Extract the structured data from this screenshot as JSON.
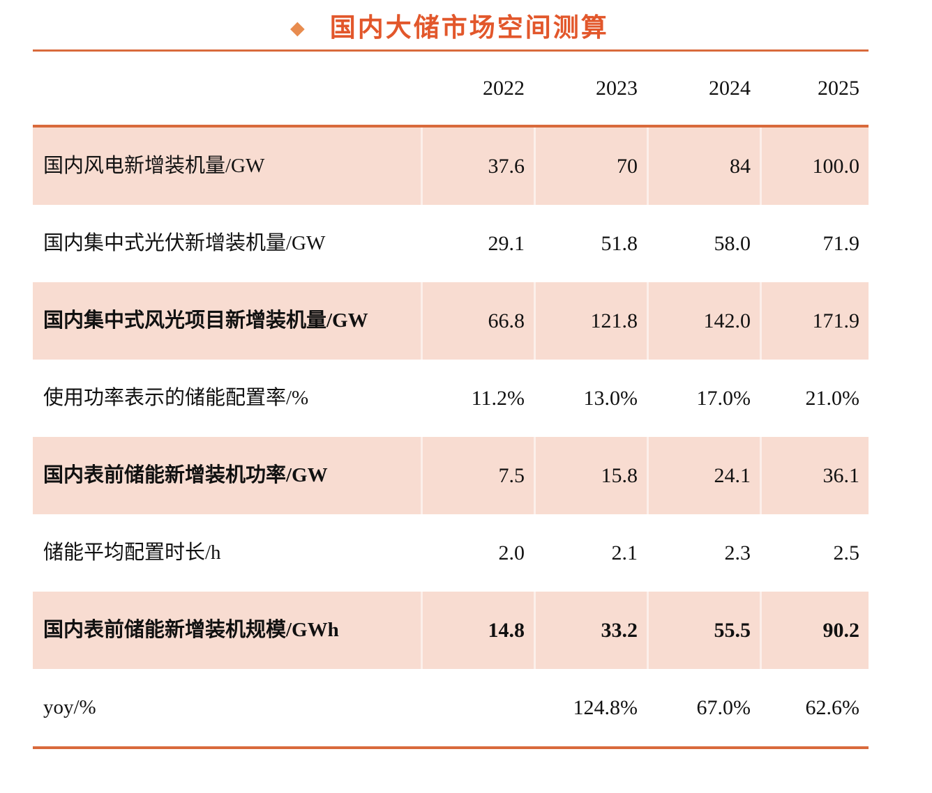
{
  "title": {
    "bullet": "◆",
    "text": "国内大储市场空间测算"
  },
  "colors": {
    "accent_rule": "#D96A3C",
    "title_text": "#E2572B",
    "bullet": "#E88C4F",
    "row_shade": "#F8DCD1",
    "body_text": "#111111"
  },
  "table": {
    "columns": [
      "",
      "2022",
      "2023",
      "2024",
      "2025"
    ],
    "rows": [
      {
        "label": "国内风电新增装机量/GW",
        "values": [
          "37.6",
          "70",
          "84",
          "100.0"
        ]
      },
      {
        "label": "国内集中式光伏新增装机量/GW",
        "values": [
          "29.1",
          "51.8",
          "58.0",
          "71.9"
        ]
      },
      {
        "label": "国内集中式风光项目新增装机量/GW",
        "values": [
          "66.8",
          "121.8",
          "142.0",
          "171.9"
        ]
      },
      {
        "label": "使用功率表示的储能配置率/%",
        "values": [
          "11.2%",
          "13.0%",
          "17.0%",
          "21.0%"
        ]
      },
      {
        "label": "国内表前储能新增装机功率/GW",
        "values": [
          "7.5",
          "15.8",
          "24.1",
          "36.1"
        ]
      },
      {
        "label": "储能平均配置时长/h",
        "values": [
          "2.0",
          "2.1",
          "2.3",
          "2.5"
        ]
      },
      {
        "label": "国内表前储能新增装机规模/GWh",
        "values": [
          "14.8",
          "33.2",
          "55.5",
          "90.2"
        ]
      },
      {
        "label": "yoy/%",
        "values": [
          "",
          "124.8%",
          "67.0%",
          "62.6%"
        ]
      }
    ]
  }
}
